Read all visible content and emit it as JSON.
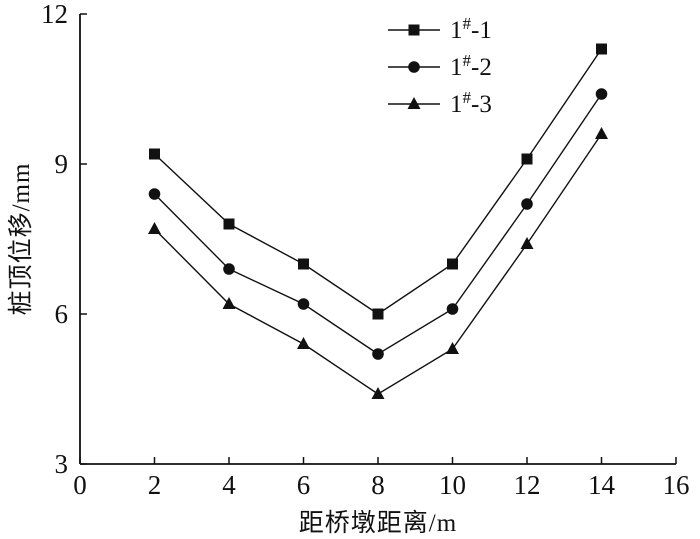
{
  "figure": {
    "background": "#ffffff",
    "ink_color": "#111111"
  },
  "chart_data": {
    "type": "line",
    "x": [
      2,
      4,
      6,
      8,
      10,
      12,
      14
    ],
    "series": [
      {
        "name": "1#-1",
        "marker": "square",
        "values": [
          9.2,
          7.8,
          7.0,
          6.0,
          7.0,
          9.1,
          11.3
        ]
      },
      {
        "name": "1#-2",
        "marker": "circle",
        "values": [
          8.4,
          6.9,
          6.2,
          5.2,
          6.1,
          8.2,
          10.4
        ]
      },
      {
        "name": "1#-3",
        "marker": "triangle",
        "values": [
          7.7,
          6.2,
          5.4,
          4.4,
          5.3,
          7.4,
          9.6
        ]
      }
    ],
    "title": "",
    "xlabel": "距桥墩距离/m",
    "ylabel": "桩顶位移/mm",
    "xlim": [
      0,
      16
    ],
    "ylim": [
      3,
      12
    ],
    "xticks": [
      0,
      2,
      4,
      6,
      8,
      10,
      12,
      14,
      16
    ],
    "yticks": [
      3,
      6,
      9,
      12
    ],
    "grid": false,
    "legend_position": "top-center"
  }
}
